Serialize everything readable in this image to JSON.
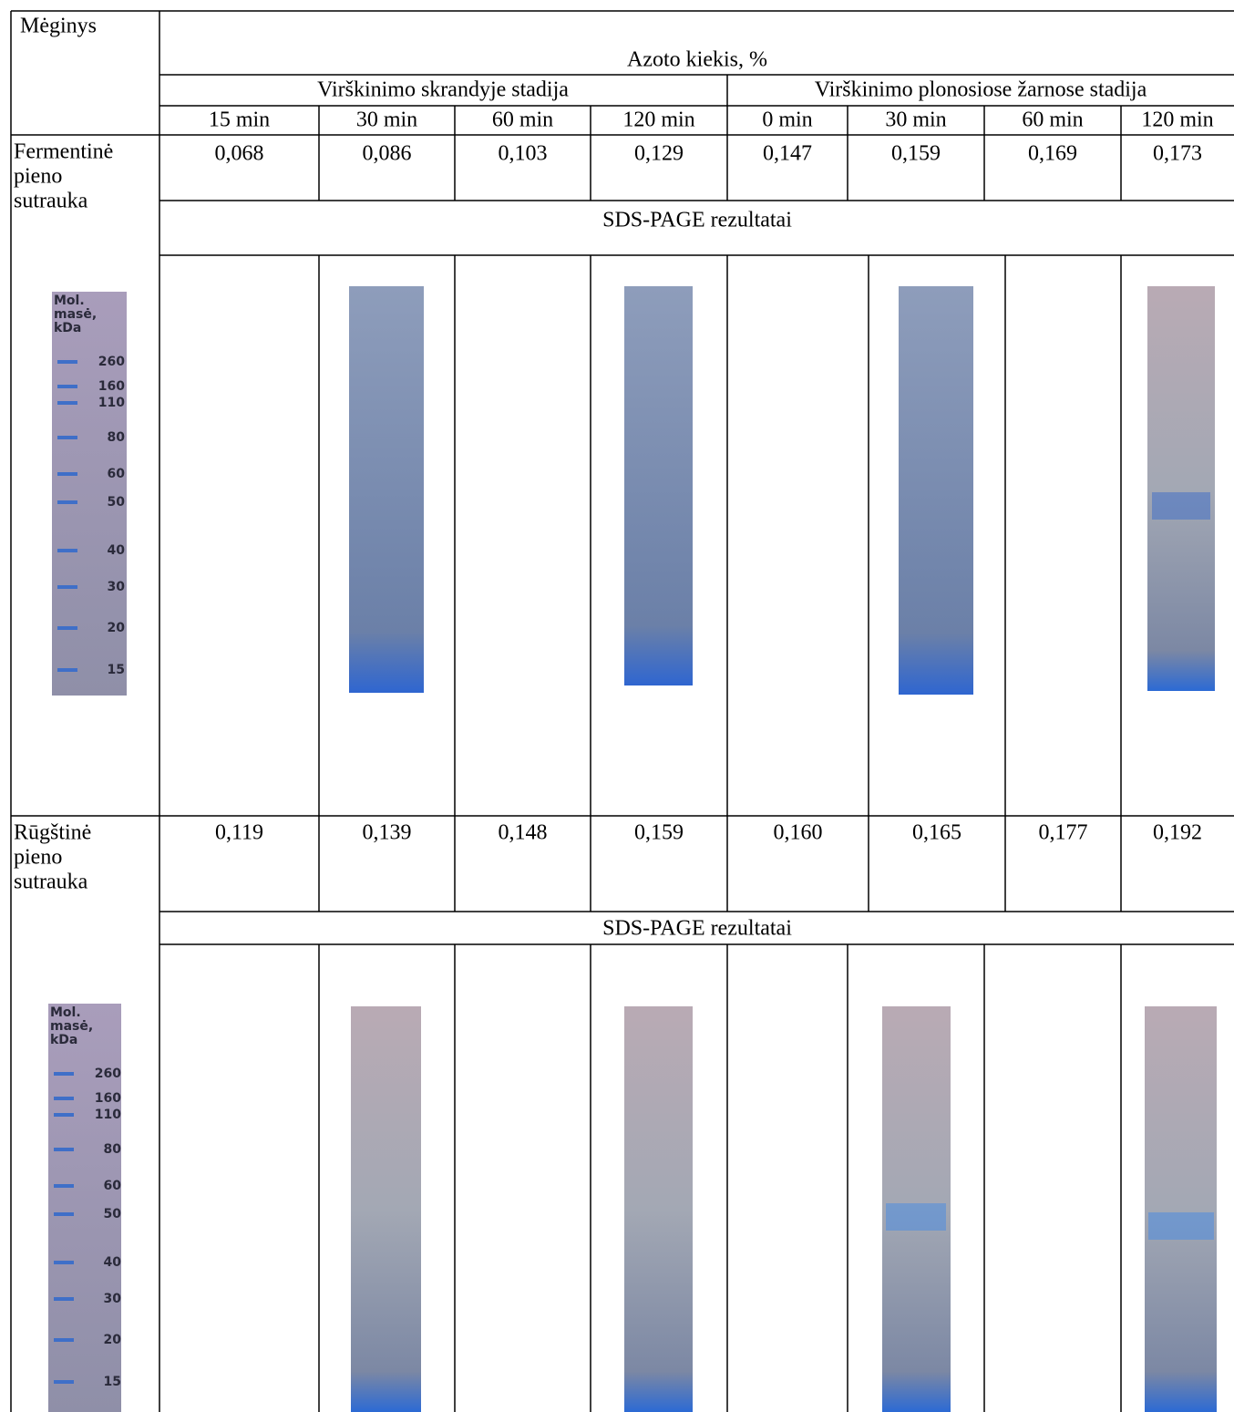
{
  "table": {
    "header": {
      "sample": "Mėginys",
      "measure": "Azoto kiekis, %",
      "stages": [
        "Virškinimo skrandyje stadija",
        "Virškinimo plonosiose žarnose stadija"
      ],
      "times": [
        "15 min",
        "30 min",
        "60 min",
        "120 min",
        "0 min",
        "30 min",
        "60 min",
        "120 min"
      ]
    },
    "rows": [
      {
        "sample": [
          "Fermentinė",
          "pieno",
          "sutrauka"
        ],
        "values": [
          "0,068",
          "0,086",
          "0,103",
          "0,129",
          "0,147",
          "0,159",
          "0,169",
          "0,173"
        ],
        "gel_caption": "SDS-PAGE rezultatai",
        "ladder": {
          "title": [
            "Mol.",
            "masė,",
            "kDa"
          ],
          "marks": [
            "260",
            "160",
            "110",
            "80",
            "60",
            "50",
            "40",
            "30",
            "20",
            "15"
          ]
        }
      },
      {
        "sample": [
          "Rūgštinė",
          "pieno",
          "sutrauka"
        ],
        "values": [
          "0,119",
          "0,139",
          "0,148",
          "0,159",
          "0,160",
          "0,165",
          "0,177",
          "0,192"
        ],
        "gel_caption": "SDS-PAGE rezultatai",
        "ladder": {
          "title": [
            "Mol.",
            "masė,",
            "kDa"
          ],
          "marks": [
            "260",
            "160",
            "110",
            "80",
            "60",
            "50",
            "40",
            "30",
            "20",
            "15"
          ]
        }
      }
    ]
  }
}
